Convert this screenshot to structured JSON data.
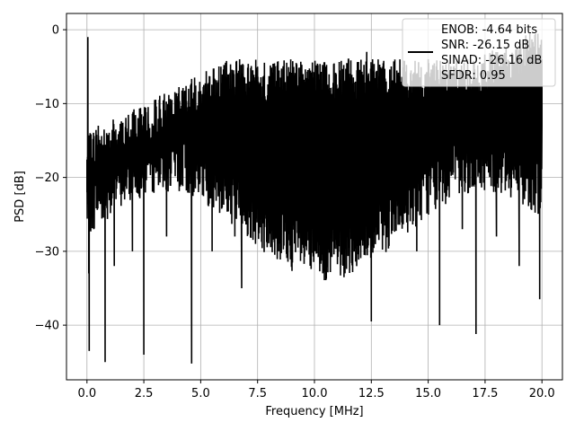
{
  "chart_data": {
    "type": "line",
    "xlabel": "Frequency [MHz]",
    "ylabel": "PSD [dB]",
    "xlim": [
      -0.9,
      20.9
    ],
    "ylim": [
      -47.4,
      2.2
    ],
    "xticks": [
      0.0,
      2.5,
      5.0,
      7.5,
      10.0,
      12.5,
      15.0,
      17.5,
      20.0
    ],
    "xtick_labels": [
      "0.0",
      "2.5",
      "5.0",
      "7.5",
      "10.0",
      "12.5",
      "15.0",
      "17.5",
      "20.0"
    ],
    "yticks": [
      0,
      -10,
      -20,
      -30,
      -40
    ],
    "ytick_labels": [
      "0",
      "−10",
      "−20",
      "−30",
      "−40"
    ],
    "grid": true,
    "legend_position": "top-right",
    "series_color": "#000000",
    "legend_entries": [
      "ENOB: -4.64 bits",
      "SNR: -26.15 dB",
      "SINAD: -26.16 dB",
      "SFDR: 0.95"
    ],
    "series": [
      {
        "x": [
          0.0,
          0.04,
          0.08,
          0.1,
          0.14,
          0.2,
          0.3,
          0.5,
          0.8,
          1.0,
          1.2,
          1.5,
          2.0,
          2.5,
          3.0,
          3.5,
          4.0,
          4.6,
          5.0,
          5.5,
          6.0,
          6.5,
          6.8,
          7.5,
          8.0,
          8.5,
          9.0,
          9.5,
          10.0,
          10.5,
          11.0,
          11.5,
          12.0,
          12.3,
          12.5,
          13.0,
          13.5,
          14.0,
          14.5,
          15.0,
          15.5,
          16.0,
          16.5,
          17.0,
          17.1,
          17.5,
          18.0,
          18.5,
          19.0,
          19.5,
          19.9,
          20.0
        ],
        "y": [
          -22.0,
          -1.0,
          -33.0,
          -43.5,
          -14.0,
          -20.0,
          -27.0,
          -13.0,
          -45.0,
          -15.0,
          -32.0,
          -14.0,
          -30.0,
          -44.0,
          -11.0,
          -28.0,
          -9.0,
          -45.2,
          -12.0,
          -30.0,
          -6.0,
          -28.0,
          -35.0,
          -5.0,
          -27.0,
          -8.0,
          -31.0,
          -6.0,
          -27.0,
          -5.0,
          -24.0,
          -4.0,
          -28.0,
          -3.0,
          -39.5,
          -5.0,
          -25.0,
          -6.0,
          -30.0,
          -4.0,
          -40.0,
          -8.0,
          -27.0,
          -6.0,
          -41.2,
          -6.0,
          -28.0,
          -7.0,
          -32.0,
          -8.0,
          -36.5,
          -13.0
        ]
      }
    ]
  }
}
